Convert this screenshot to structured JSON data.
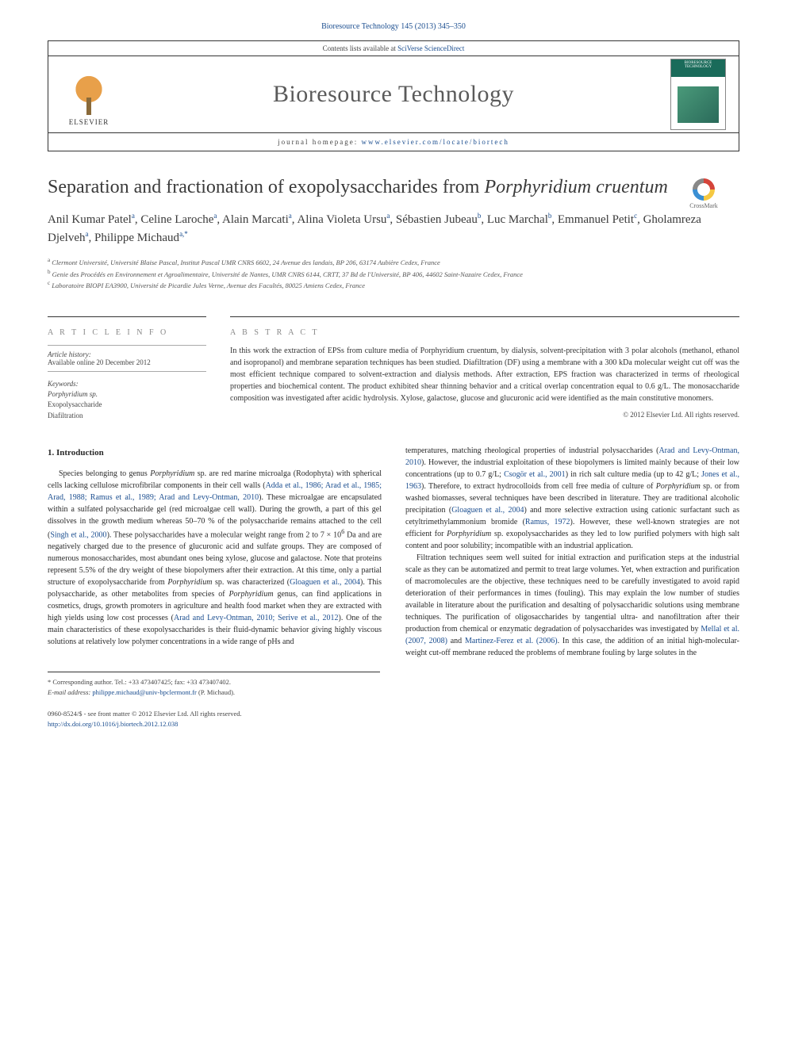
{
  "journal": {
    "top_citation": "Bioresource Technology 145 (2013) 345–350",
    "contents_line_prefix": "Contents lists available at ",
    "contents_link": "SciVerse ScienceDirect",
    "name": "Bioresource Technology",
    "homepage_prefix": "journal homepage: ",
    "homepage_link": "www.elsevier.com/locate/biortech",
    "publisher_logo_text": "ELSEVIER",
    "cover_label": "BIORESOURCE TECHNOLOGY"
  },
  "crossmark": {
    "label": "CrossMark"
  },
  "article": {
    "title_prefix": "Separation and fractionation of exopolysaccharides from ",
    "title_species": "Porphyridium cruentum",
    "authors_html": "Anil Kumar Patel<sup>a</sup>, Celine Laroche<sup>a</sup>, Alain Marcati<sup>a</sup>, Alina Violeta Ursu<sup>a</sup>, Sébastien Jubeau<sup>b</sup>, Luc Marchal<sup>b</sup>, Emmanuel Petit<sup>c</sup>, Gholamreza Djelveh<sup>a</sup>, Philippe Michaud<sup>a,*</sup>",
    "affiliations": [
      {
        "sup": "a",
        "text": "Clermont Université, Université Blaise Pascal, Institut Pascal UMR CNRS 6602, 24 Avenue des landais, BP 206, 63174 Aubière Cedex, France"
      },
      {
        "sup": "b",
        "text": "Genie des Procédés en Environnement et Agroalimentaire, Université de Nantes, UMR CNRS 6144, CRTT, 37 Bd de l'Université, BP 406, 44602 Saint-Nazaire Cedex, France"
      },
      {
        "sup": "c",
        "text": "Laboratoire BIOPI EA3900, Université de Picardie Jules Verne, Avenue des Facultés, 80025 Amiens Cedex, France"
      }
    ]
  },
  "info": {
    "article_info_label": "A R T I C L E   I N F O",
    "abstract_label": "A B S T R A C T",
    "history_label": "Article history:",
    "history_value": "Available online 20 December 2012",
    "keywords_label": "Keywords:",
    "keywords": [
      "Porphyridium sp.",
      "Exopolysaccharide",
      "Diafiltration"
    ],
    "abstract_text": "In this work the extraction of EPSs from culture media of Porphyridium cruentum, by dialysis, solvent-precipitation with 3 polar alcohols (methanol, ethanol and isopropanol) and membrane separation techniques has been studied. Diafiltration (DF) using a membrane with a 300 kDa molecular weight cut off was the most efficient technique compared to solvent-extraction and dialysis methods. After extraction, EPS fraction was characterized in terms of rheological properties and biochemical content. The product exhibited shear thinning behavior and a critical overlap concentration equal to 0.6 g/L. The monosaccharide composition was investigated after acidic hydrolysis. Xylose, galactose, glucose and glucuronic acid were identified as the main constitutive monomers.",
    "copyright": "© 2012 Elsevier Ltd. All rights reserved."
  },
  "body": {
    "section_heading": "1. Introduction",
    "col1_p1_html": "Species belonging to genus <em>Porphyridium</em> sp. are red marine microalga (Rodophyta) with spherical cells lacking cellulose microfibrilar components in their cell walls (<a class='ref'>Adda et al., 1986; Arad et al., 1985; Arad, 1988; Ramus et al., 1989; Arad and Levy-Ontman, 2010</a>). These microalgae are encapsulated within a sulfated polysaccharide gel (red microalgae cell wall). During the growth, a part of this gel dissolves in the growth medium whereas 50–70 % of the polysaccharide remains attached to the cell (<a class='ref'>Singh et al., 2000</a>). These polysaccharides have a molecular weight range from 2 to 7 × 10<sup>6</sup> Da and are negatively charged due to the presence of glucuronic acid and sulfate groups. They are composed of numerous monosaccharides, most abundant ones being xylose, glucose and galactose. Note that proteins represent 5.5% of the dry weight of these biopolymers after their extraction. At this time, only a partial structure of exopolysaccharide from <em>Porphyridium</em> sp. was characterized (<a class='ref'>Gloaguen et al., 2004</a>). This polysaccharide, as other metabolites from species of <em>Porphyridium</em> genus, can find applications in cosmetics, drugs, growth promoters in agriculture and health food market when they are extracted with high yields using low cost processes (<a class='ref'>Arad and Levy-Ontman, 2010; Serive et al., 2012</a>). One of the main characteristics of these exopolysaccharides is their fluid-dynamic behavior giving highly viscous solutions at relatively low polymer concentrations in a wide range of pHs and",
    "col2_p1_html": "temperatures, matching rheological properties of industrial polysaccharides (<a class='ref'>Arad and Levy-Ontman, 2010</a>). However, the industrial exploitation of these biopolymers is limited mainly because of their low concentrations (up to 0.7 g/L; <a class='ref'>Csogör et al., 2001</a>) in rich salt culture media (up to 42 g/L; <a class='ref'>Jones et al., 1963</a>). Therefore, to extract hydrocolloids from cell free media of culture of <em>Porphyridium</em> sp. or from washed biomasses, several techniques have been described in literature. They are traditional alcoholic precipitation (<a class='ref'>Gloaguen et al., 2004</a>) and more selective extraction using cationic surfactant such as cetyltrimethylammonium bromide (<a class='ref'>Ramus, 1972</a>). However, these well-known strategies are not efficient for <em>Porphyridium</em> sp. exopolysaccharides as they led to low purified polymers with high salt content and poor solubility; incompatible with an industrial application.",
    "col2_p2_html": "Filtration techniques seem well suited for initial extraction and purification steps at the industrial scale as they can be automatized and permit to treat large volumes. Yet, when extraction and purification of macromolecules are the objective, these techniques need to be carefully investigated to avoid rapid deterioration of their performances in times (fouling). This may explain the low number of studies available in literature about the purification and desalting of polysaccharidic solutions using membrane techniques. The purification of oligosaccharides by tangential ultra- and nanofiltration after their production from chemical or enzymatic degradation of polysaccharides was investigated by <a class='ref'>Mellal et al. (2007, 2008)</a> and <a class='ref'>Martinez-Ferez et al. (2006)</a>. In this case, the addition of an initial high-molecular-weight cut-off membrane reduced the problems of membrane fouling by large solutes in the"
  },
  "footer": {
    "corr_line": "* Corresponding author. Tel.: +33 473407425; fax: +33 473407402.",
    "email_label": "E-mail address:",
    "email": "philippe.michaud@univ-bpclermont.fr",
    "email_who": "(P. Michaud).",
    "issn_line": "0960-8524/$ - see front matter © 2012 Elsevier Ltd. All rights reserved.",
    "doi": "http://dx.doi.org/10.1016/j.biortech.2012.12.038"
  },
  "colors": {
    "link": "#1a4d8f",
    "text": "#2a2a2a",
    "label_gray": "#888888",
    "rule": "#333333"
  }
}
